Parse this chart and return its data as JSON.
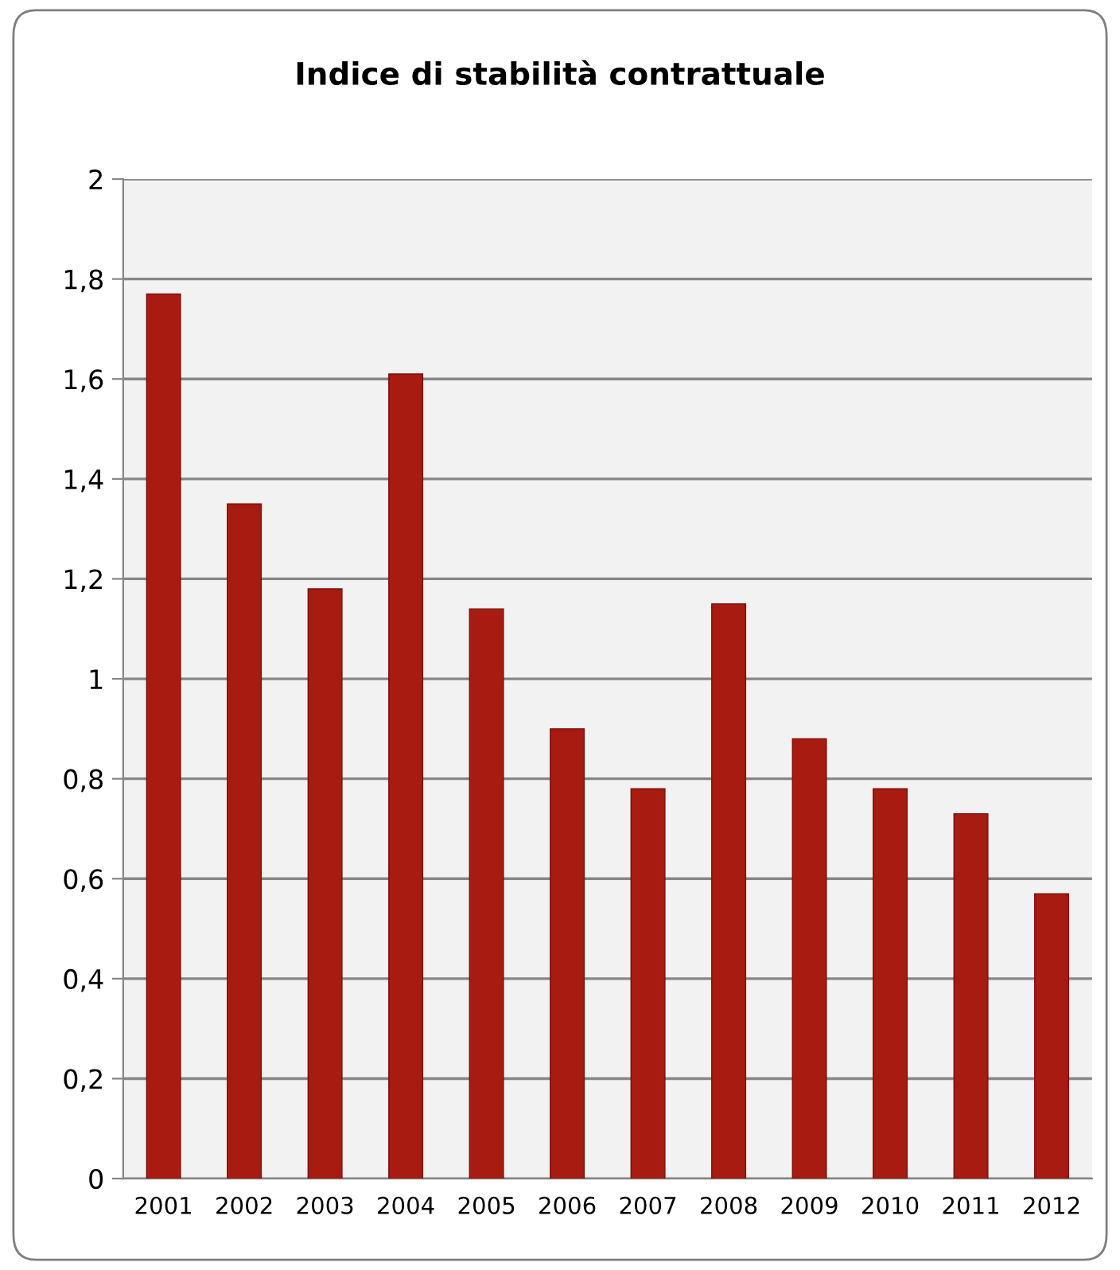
{
  "chart_data": {
    "type": "bar",
    "title": "Indice di stabilità contrattuale",
    "categories": [
      "2001",
      "2002",
      "2003",
      "2004",
      "2005",
      "2006",
      "2007",
      "2008",
      "2009",
      "2010",
      "2011",
      "2012"
    ],
    "values": [
      1.77,
      1.35,
      1.18,
      1.61,
      1.14,
      0.9,
      0.78,
      1.15,
      0.88,
      0.78,
      0.73,
      0.57
    ],
    "color": "#a81b10",
    "ylim": [
      0,
      2
    ],
    "yticks": [
      0,
      {
        "value": 0.2,
        "label": "0,2"
      },
      {
        "value": 0.4,
        "label": "0,4"
      },
      {
        "value": 0.6,
        "label": "0,6"
      },
      {
        "value": 0.8,
        "label": "0,8"
      },
      1,
      {
        "value": 1.2,
        "label": "1,2"
      },
      {
        "value": 1.4,
        "label": "1,4"
      },
      {
        "value": 1.6,
        "label": "1,6"
      },
      {
        "value": 1.8,
        "label": "1,8"
      },
      2
    ],
    "grid": "y",
    "legend": false
  }
}
